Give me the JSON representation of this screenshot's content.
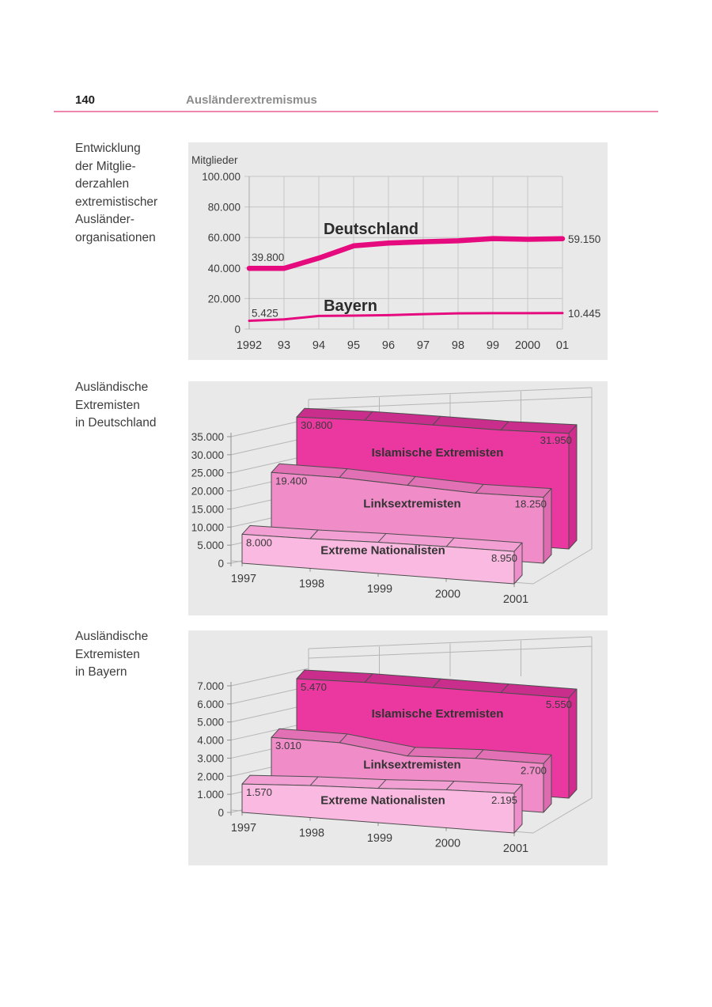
{
  "page": {
    "number": "140",
    "header": "Ausländerextremismus"
  },
  "colors": {
    "accent_rule": "#ee86ae",
    "panel_bg": "#e9e9e9",
    "line_magenta": "#e50b7e",
    "islamische_front": "#eb38a0",
    "islamische_top": "#c92e8c",
    "islamische_side": "#d12b8d",
    "links_front": "#f08cc8",
    "links_top": "#e171b4",
    "links_side": "#dd6bb0",
    "nationalisten_front": "#fab9e1",
    "nationalisten_top": "#f2a0d4",
    "nationalisten_side": "#ee8fcb"
  },
  "sections": [
    {
      "caption": "Entwicklung\nder Mitglie-\nderzahlen\nextremistischer\nAusländer-\norganisationen"
    },
    {
      "caption": "Ausländische\nExtremisten\nin Deutschland"
    },
    {
      "caption": "Ausländische\nExtremisten\nin Bayern"
    }
  ],
  "chart_data": [
    {
      "type": "line",
      "title": "",
      "ylabel": "Mitglieder",
      "categories": [
        "1992",
        "93",
        "94",
        "95",
        "96",
        "97",
        "98",
        "99",
        "2000",
        "01"
      ],
      "yticks": [
        "100.000",
        "80.000",
        "60.000",
        "40.000",
        "20.000",
        "0"
      ],
      "ylim": [
        0,
        100000
      ],
      "grid": true,
      "line_color": "#e50b7e",
      "series": [
        {
          "name": "Deutschland",
          "values": [
            39800,
            39800,
            46500,
            54500,
            56300,
            57200,
            57800,
            59300,
            58800,
            59150
          ],
          "start_label": "39.800",
          "end_label": "59.150"
        },
        {
          "name": "Bayern",
          "values": [
            5425,
            6300,
            8600,
            8800,
            9100,
            9800,
            10300,
            10400,
            10400,
            10445
          ],
          "start_label": "5.425",
          "end_label": "10.445"
        }
      ]
    },
    {
      "type": "ribbon3d",
      "title": "Ausländische Extremisten in Deutschland",
      "categories": [
        "1997",
        "1998",
        "1999",
        "2000",
        "2001"
      ],
      "yticks": [
        "35.000",
        "30.000",
        "25.000",
        "20.000",
        "15.000",
        "10.000",
        "5.000",
        "0"
      ],
      "ylim": [
        0,
        35000
      ],
      "series": [
        {
          "name": "Islamische Extremisten",
          "values": [
            30800,
            31350,
            31450,
            31450,
            31950
          ],
          "start_label": "30.800",
          "end_label": "31.950",
          "front_color": "#eb38a0",
          "top_color": "#c92e8c",
          "side_color": "#d12b8d"
        },
        {
          "name": "Linksextremisten",
          "values": [
            19400,
            19450,
            18700,
            17950,
            18250
          ],
          "start_label": "19.400",
          "end_label": "18.250",
          "front_color": "#f08cc8",
          "top_color": "#e171b4",
          "side_color": "#dd6bb0"
        },
        {
          "name": "Extreme Nationalisten",
          "values": [
            8000,
            8200,
            8650,
            8850,
            8950
          ],
          "start_label": "8.000",
          "end_label": "8.950",
          "front_color": "#fab9e1",
          "top_color": "#f2a0d4",
          "side_color": "#ee8fcb"
        }
      ]
    },
    {
      "type": "ribbon3d",
      "title": "Ausländische Extremisten in Bayern",
      "categories": [
        "1997",
        "1998",
        "1999",
        "2000",
        "2001"
      ],
      "yticks": [
        "7.000",
        "6.000",
        "5.000",
        "4.000",
        "3.000",
        "2.000",
        "1.000",
        "0"
      ],
      "ylim": [
        0,
        7000
      ],
      "series": [
        {
          "name": "Islamische Extremisten",
          "values": [
            5470,
            5550,
            5550,
            5550,
            5550
          ],
          "start_label": "5.470",
          "end_label": "5.550",
          "front_color": "#eb38a0",
          "top_color": "#c92e8c",
          "side_color": "#d12b8d"
        },
        {
          "name": "Linksextremisten",
          "values": [
            3010,
            3000,
            2550,
            2700,
            2700
          ],
          "start_label": "3.010",
          "end_label": "2.700",
          "front_color": "#f08cc8",
          "top_color": "#e171b4",
          "side_color": "#dd6bb0"
        },
        {
          "name": "Extreme Nationalisten",
          "values": [
            1570,
            1770,
            1900,
            2100,
            2195
          ],
          "start_label": "1.570",
          "end_label": "2.195",
          "front_color": "#fab9e1",
          "top_color": "#f2a0d4",
          "side_color": "#ee8fcb"
        }
      ]
    }
  ]
}
